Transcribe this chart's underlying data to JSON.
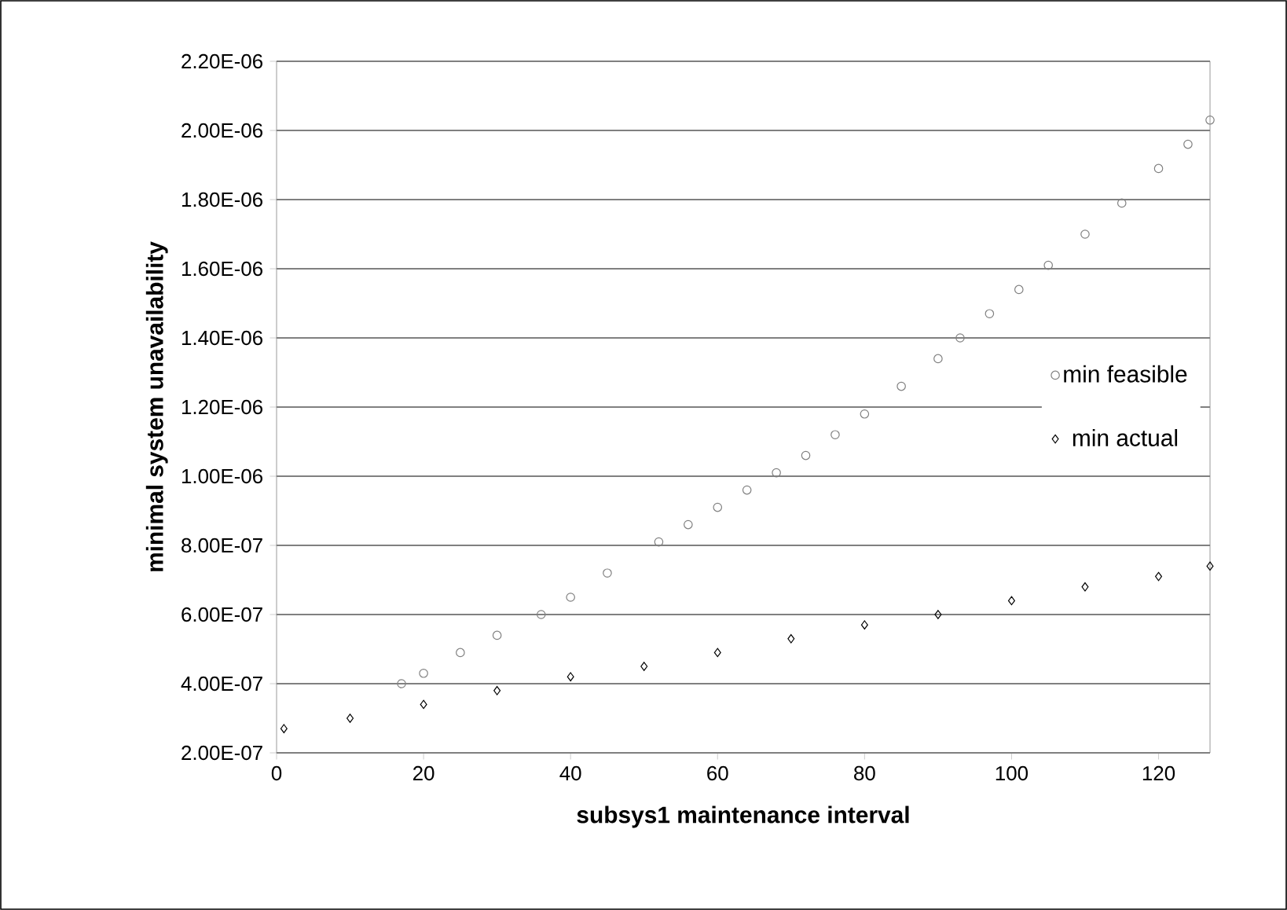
{
  "chart_data": {
    "type": "scatter",
    "xlabel": "subsys1 maintenance interval",
    "ylabel": "minimal system unavailability",
    "xlim": [
      0,
      127
    ],
    "xticks": [
      0,
      20,
      40,
      60,
      80,
      100,
      120
    ],
    "ylim": [
      2e-07,
      2.2e-06
    ],
    "yticks": [
      {
        "value": 2e-07,
        "label": "2.00E-07"
      },
      {
        "value": 4e-07,
        "label": "4.00E-07"
      },
      {
        "value": 6e-07,
        "label": "6.00E-07"
      },
      {
        "value": 8e-07,
        "label": "8.00E-07"
      },
      {
        "value": 1e-06,
        "label": "1.00E-06"
      },
      {
        "value": 1.2e-06,
        "label": "1.20E-06"
      },
      {
        "value": 1.4e-06,
        "label": "1.40E-06"
      },
      {
        "value": 1.6e-06,
        "label": "1.60E-06"
      },
      {
        "value": 1.8e-06,
        "label": "1.80E-06"
      },
      {
        "value": 2e-06,
        "label": "2.00E-06"
      },
      {
        "value": 2.2e-06,
        "label": "2.20E-06"
      }
    ],
    "grid": "y",
    "legend": "right",
    "series": [
      {
        "name": "min feasible",
        "color": "#808080",
        "marker": "circle",
        "x": [
          17,
          20,
          25,
          30,
          36,
          40,
          45,
          52,
          56,
          60,
          64,
          68,
          72,
          76,
          80,
          85,
          90,
          93,
          97,
          101,
          105,
          110,
          115,
          120,
          124,
          127
        ],
        "values": [
          4e-07,
          4.3e-07,
          4.9e-07,
          5.4e-07,
          6e-07,
          6.5e-07,
          7.2e-07,
          8.1e-07,
          8.6e-07,
          9.1e-07,
          9.6e-07,
          1.01e-06,
          1.06e-06,
          1.12e-06,
          1.18e-06,
          1.26e-06,
          1.34e-06,
          1.4e-06,
          1.47e-06,
          1.54e-06,
          1.61e-06,
          1.7e-06,
          1.79e-06,
          1.89e-06,
          1.96e-06,
          2.03e-06
        ]
      },
      {
        "name": "min actual",
        "color": "#000000",
        "marker": "diamond",
        "x": [
          1,
          10,
          20,
          30,
          40,
          50,
          60,
          70,
          80,
          90,
          100,
          110,
          120,
          127
        ],
        "values": [
          2.7e-07,
          3e-07,
          3.4e-07,
          3.8e-07,
          4.2e-07,
          4.5e-07,
          4.9e-07,
          5.3e-07,
          5.7e-07,
          6e-07,
          6.4e-07,
          6.8e-07,
          7.1e-07,
          7.4e-07
        ]
      }
    ]
  }
}
